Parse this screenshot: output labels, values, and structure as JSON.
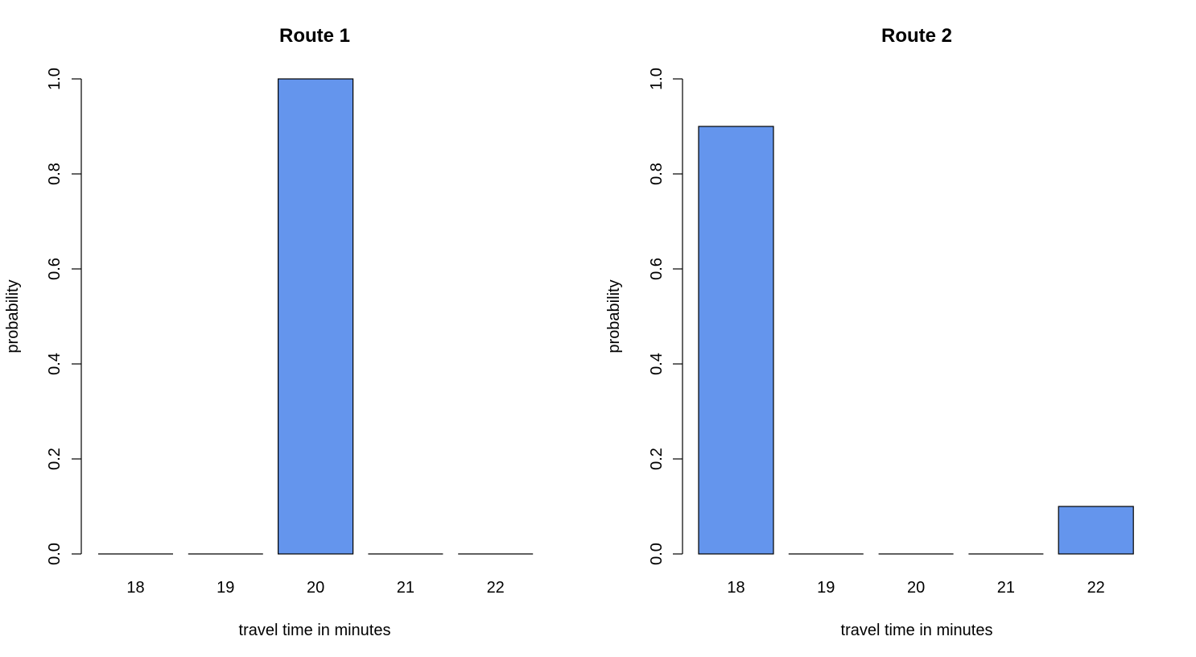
{
  "chart_data": [
    {
      "type": "bar",
      "title": "Route 1",
      "xlabel": "travel time in minutes",
      "ylabel": "probability",
      "categories": [
        "18",
        "19",
        "20",
        "21",
        "22"
      ],
      "values": [
        0,
        0,
        1.0,
        0,
        0
      ],
      "ylim": [
        0,
        1.0
      ],
      "yticks": [
        "0.0",
        "0.2",
        "0.4",
        "0.6",
        "0.8",
        "1.0"
      ],
      "bar_color": "#6495ED",
      "grid": false
    },
    {
      "type": "bar",
      "title": "Route 2",
      "xlabel": "travel time in minutes",
      "ylabel": "probability",
      "categories": [
        "18",
        "19",
        "20",
        "21",
        "22"
      ],
      "values": [
        0.9,
        0,
        0,
        0,
        0.1
      ],
      "ylim": [
        0,
        1.0
      ],
      "yticks": [
        "0.0",
        "0.2",
        "0.4",
        "0.6",
        "0.8",
        "1.0"
      ],
      "bar_color": "#6495ED",
      "grid": false
    }
  ]
}
